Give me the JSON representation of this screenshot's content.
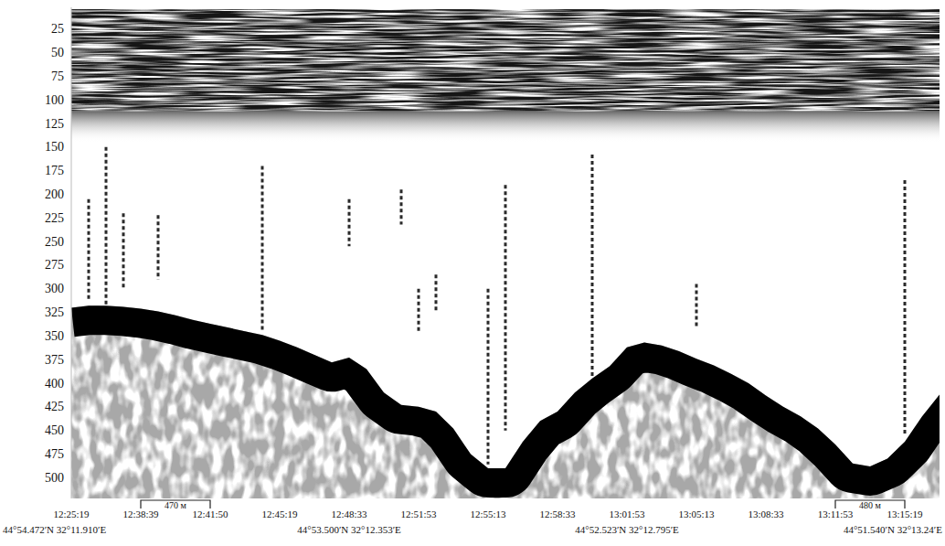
{
  "chart_data": {
    "type": "echogram",
    "categories": [
      "12:25:19",
      null,
      null,
      null,
      "12:38:39",
      null,
      null,
      null,
      "12:41:50",
      null,
      null,
      null,
      "12:45:19",
      null,
      null,
      null,
      "12:48:33",
      null,
      null,
      null,
      "12:51:53",
      null,
      null,
      null,
      "12:55:13",
      null,
      null,
      null,
      "12:58:33",
      null,
      null,
      null,
      "13:01:53",
      null,
      null,
      null,
      "13:05:13",
      null,
      null,
      null,
      "13:08:33",
      null,
      null,
      null,
      "13:11:53",
      null,
      null,
      null,
      "13:15:19",
      null,
      null
    ],
    "series": [
      {
        "color": "#000000",
        "values": [
          320,
          318,
          318,
          319,
          321,
          324,
          328,
          333,
          337,
          341,
          345,
          349,
          355,
          362,
          370,
          378,
          373,
          385,
          410,
          423,
          425,
          430,
          448,
          475,
          490,
          490,
          462,
          440,
          430,
          410,
          395,
          382,
          362,
          357,
          360,
          366,
          374,
          381,
          390,
          400,
          413,
          425,
          435,
          448,
          465,
          485,
          488,
          480,
          462,
          435,
          412
        ]
      }
    ],
    "flares": {
      "top": [
        null,
        205,
        150,
        220,
        null,
        222,
        null,
        null,
        null,
        null,
        null,
        170,
        null,
        null,
        null,
        null,
        205,
        null,
        null,
        195,
        300,
        285,
        null,
        null,
        300,
        190,
        null,
        null,
        null,
        null,
        158,
        null,
        null,
        null,
        null,
        null,
        295,
        null,
        null,
        null,
        null,
        null,
        null,
        null,
        null,
        null,
        null,
        null,
        185,
        null,
        null
      ],
      "bottom": [
        null,
        312,
        318,
        300,
        null,
        290,
        null,
        null,
        null,
        null,
        null,
        345,
        null,
        null,
        null,
        null,
        255,
        null,
        null,
        232,
        345,
        325,
        null,
        null,
        486,
        450,
        null,
        null,
        null,
        null,
        394,
        null,
        null,
        null,
        null,
        null,
        340,
        null,
        null,
        null,
        null,
        null,
        null,
        null,
        null,
        null,
        null,
        null,
        456,
        null,
        null
      ]
    },
    "scattering_layer": {
      "top": 4,
      "bottom": 112
    },
    "ylim": [
      2,
      522
    ],
    "yticks": [
      25,
      50,
      75,
      100,
      125,
      150,
      175,
      200,
      225,
      250,
      275,
      300,
      325,
      350,
      375,
      400,
      425,
      450,
      475,
      500
    ],
    "grid": false,
    "scale_bars": [
      {
        "label": "470 м",
        "from": "12:38:39",
        "to": "12:41:50"
      },
      {
        "label": "480 м",
        "from": "13:11:53",
        "to": "13:15:19"
      }
    ],
    "coordinates": [
      {
        "at": "12:25:19",
        "label": "44°54.472′N 32°11.910′E"
      },
      {
        "at": "12:48:33",
        "label": "44°53.500′N 32°12.353′E"
      },
      {
        "at": "13:01:53",
        "label": "44°52.523′N 32°12.795′E"
      },
      {
        "at": "13:15:19",
        "label": "44°51.540′N 32°13.24′E"
      }
    ]
  }
}
